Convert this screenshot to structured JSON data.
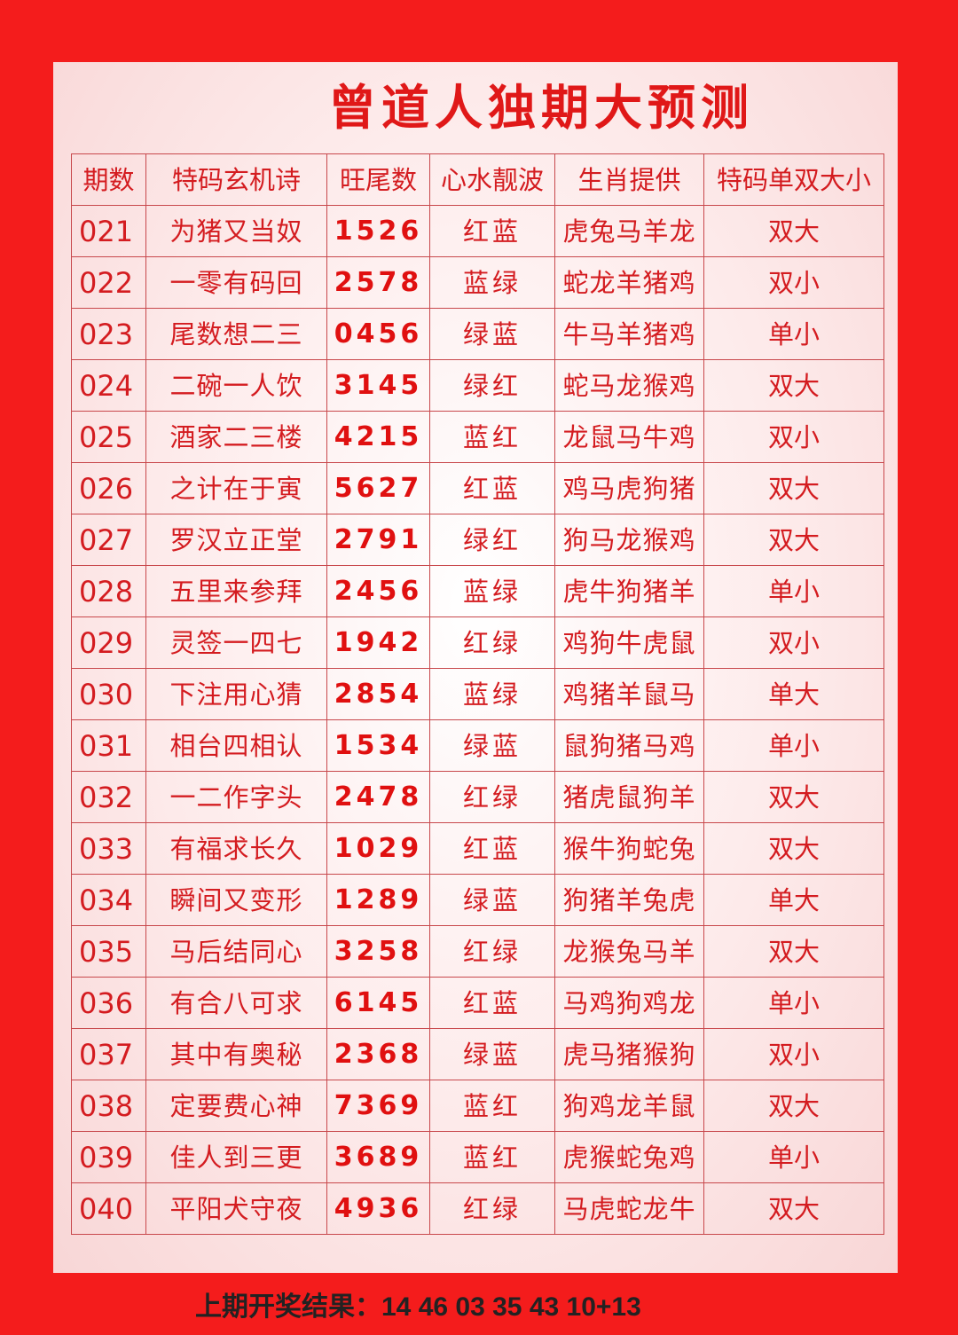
{
  "title": "曾道人独期大预测",
  "headers": [
    "期数",
    "特码玄机诗",
    "旺尾数",
    "心水靓波",
    "生肖提供",
    "特码单双大小"
  ],
  "rows": [
    {
      "period": "021",
      "poem": "为猪又当奴",
      "tails": "1526",
      "wave": "红蓝",
      "zodiac": "虎兔马羊龙",
      "odd_even_size": "双大"
    },
    {
      "period": "022",
      "poem": "一零有码回",
      "tails": "2578",
      "wave": "蓝绿",
      "zodiac": "蛇龙羊猪鸡",
      "odd_even_size": "双小"
    },
    {
      "period": "023",
      "poem": "尾数想二三",
      "tails": "0456",
      "wave": "绿蓝",
      "zodiac": "牛马羊猪鸡",
      "odd_even_size": "单小"
    },
    {
      "period": "024",
      "poem": "二碗一人饮",
      "tails": "3145",
      "wave": "绿红",
      "zodiac": "蛇马龙猴鸡",
      "odd_even_size": "双大"
    },
    {
      "period": "025",
      "poem": "酒家二三楼",
      "tails": "4215",
      "wave": "蓝红",
      "zodiac": "龙鼠马牛鸡",
      "odd_even_size": "双小"
    },
    {
      "period": "026",
      "poem": "之计在于寅",
      "tails": "5627",
      "wave": "红蓝",
      "zodiac": "鸡马虎狗猪",
      "odd_even_size": "双大"
    },
    {
      "period": "027",
      "poem": "罗汉立正堂",
      "tails": "2791",
      "wave": "绿红",
      "zodiac": "狗马龙猴鸡",
      "odd_even_size": "双大"
    },
    {
      "period": "028",
      "poem": "五里来参拜",
      "tails": "2456",
      "wave": "蓝绿",
      "zodiac": "虎牛狗猪羊",
      "odd_even_size": "单小"
    },
    {
      "period": "029",
      "poem": "灵签一四七",
      "tails": "1942",
      "wave": "红绿",
      "zodiac": "鸡狗牛虎鼠",
      "odd_even_size": "双小"
    },
    {
      "period": "030",
      "poem": "下注用心猜",
      "tails": "2854",
      "wave": "蓝绿",
      "zodiac": "鸡猪羊鼠马",
      "odd_even_size": "单大"
    },
    {
      "period": "031",
      "poem": "相台四相认",
      "tails": "1534",
      "wave": "绿蓝",
      "zodiac": "鼠狗猪马鸡",
      "odd_even_size": "单小"
    },
    {
      "period": "032",
      "poem": "一二作字头",
      "tails": "2478",
      "wave": "红绿",
      "zodiac": "猪虎鼠狗羊",
      "odd_even_size": "双大"
    },
    {
      "period": "033",
      "poem": "有福求长久",
      "tails": "1029",
      "wave": "红蓝",
      "zodiac": "猴牛狗蛇兔",
      "odd_even_size": "双大"
    },
    {
      "period": "034",
      "poem": "瞬间又变形",
      "tails": "1289",
      "wave": "绿蓝",
      "zodiac": "狗猪羊兔虎",
      "odd_even_size": "单大"
    },
    {
      "period": "035",
      "poem": "马后结同心",
      "tails": "3258",
      "wave": "红绿",
      "zodiac": "龙猴兔马羊",
      "odd_even_size": "双大"
    },
    {
      "period": "036",
      "poem": "有合八可求",
      "tails": "6145",
      "wave": "红蓝",
      "zodiac": "马鸡狗鸡龙",
      "odd_even_size": "单小"
    },
    {
      "period": "037",
      "poem": "其中有奥秘",
      "tails": "2368",
      "wave": "绿蓝",
      "zodiac": "虎马猪猴狗",
      "odd_even_size": "双小"
    },
    {
      "period": "038",
      "poem": "定要费心神",
      "tails": "7369",
      "wave": "蓝红",
      "zodiac": "狗鸡龙羊鼠",
      "odd_even_size": "双大"
    },
    {
      "period": "039",
      "poem": "佳人到三更",
      "tails": "3689",
      "wave": "蓝红",
      "zodiac": "虎猴蛇兔鸡",
      "odd_even_size": "单小"
    },
    {
      "period": "040",
      "poem": "平阳犬守夜",
      "tails": "4936",
      "wave": "红绿",
      "zodiac": "马虎蛇龙牛",
      "odd_even_size": "双大"
    }
  ],
  "footer": "上期开奖结果：14 46 03 35 43 10+13",
  "colors": {
    "background": "#f41c1c",
    "text": "#d41c20",
    "border": "#c8484c"
  }
}
